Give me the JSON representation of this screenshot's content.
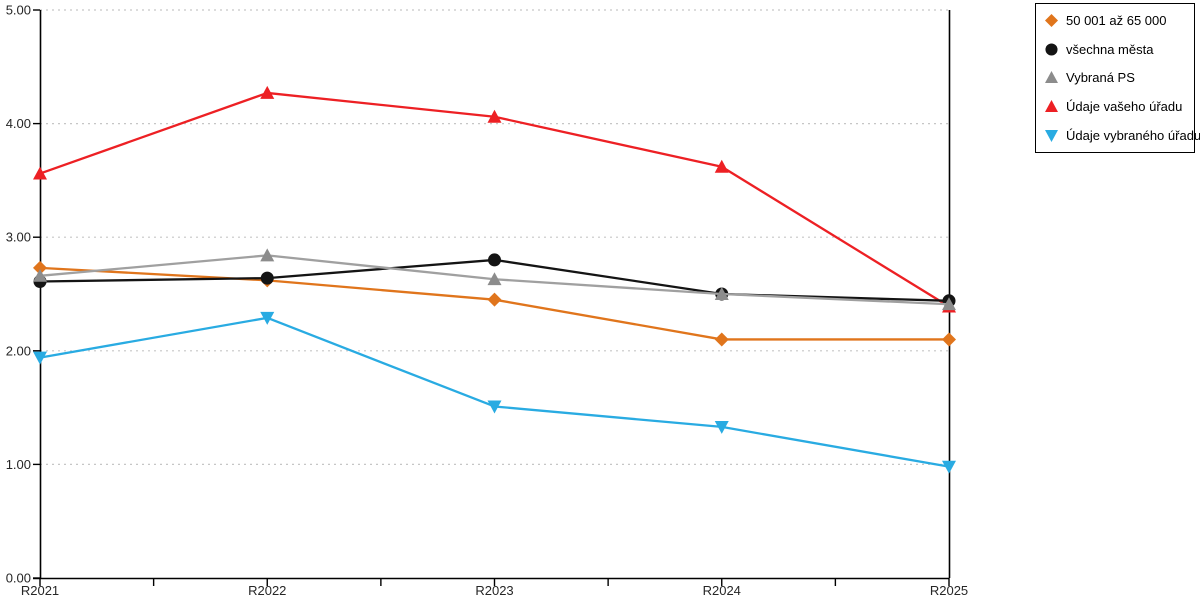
{
  "chart_data": {
    "type": "line",
    "title": "",
    "xlabel": "",
    "ylabel": "",
    "categories": [
      "R2021",
      "R2022",
      "R2023",
      "R2024",
      "R2025"
    ],
    "y_tick_labels": [
      "0.00",
      "1.00",
      "2.00",
      "3.00",
      "4.00",
      "5.00"
    ],
    "ylim": [
      0,
      5
    ],
    "grid": "horizontal-dotted",
    "legend_position": "outside-top-right",
    "series": [
      {
        "name": "50 001 až 65 000",
        "marker": "diamond",
        "color": "#E0751C",
        "line_color": "#E0751C",
        "values": [
          2.73,
          2.62,
          2.45,
          2.1,
          2.1
        ]
      },
      {
        "name": "všechna města",
        "marker": "circle",
        "color": "#141414",
        "line_color": "#141414",
        "values": [
          2.61,
          2.64,
          2.8,
          2.5,
          2.44
        ]
      },
      {
        "name": "Vybraná PS",
        "marker": "triangle-up",
        "color": "#8C8C8C",
        "line_color": "#A0A0A0",
        "values": [
          2.66,
          2.84,
          2.63,
          2.5,
          2.41
        ]
      },
      {
        "name": "Údaje vašeho úřadu",
        "marker": "triangle-up",
        "color": "#ED2024",
        "line_color": "#ED2024",
        "values": [
          3.56,
          4.27,
          4.06,
          3.62,
          2.39
        ]
      },
      {
        "name": "Údaje vybraného úřadu",
        "marker": "triangle-down",
        "color": "#29ABE2",
        "line_color": "#29ABE2",
        "values": [
          1.94,
          2.29,
          1.51,
          1.33,
          0.98
        ]
      }
    ],
    "draw_order": [
      3,
      4,
      0,
      1,
      2
    ],
    "colors": {
      "axis": "#000000",
      "gridline": "#C6C6C6",
      "tick_label": "#262626",
      "background": "#FFFFFF",
      "legend_border": "#000000"
    }
  }
}
